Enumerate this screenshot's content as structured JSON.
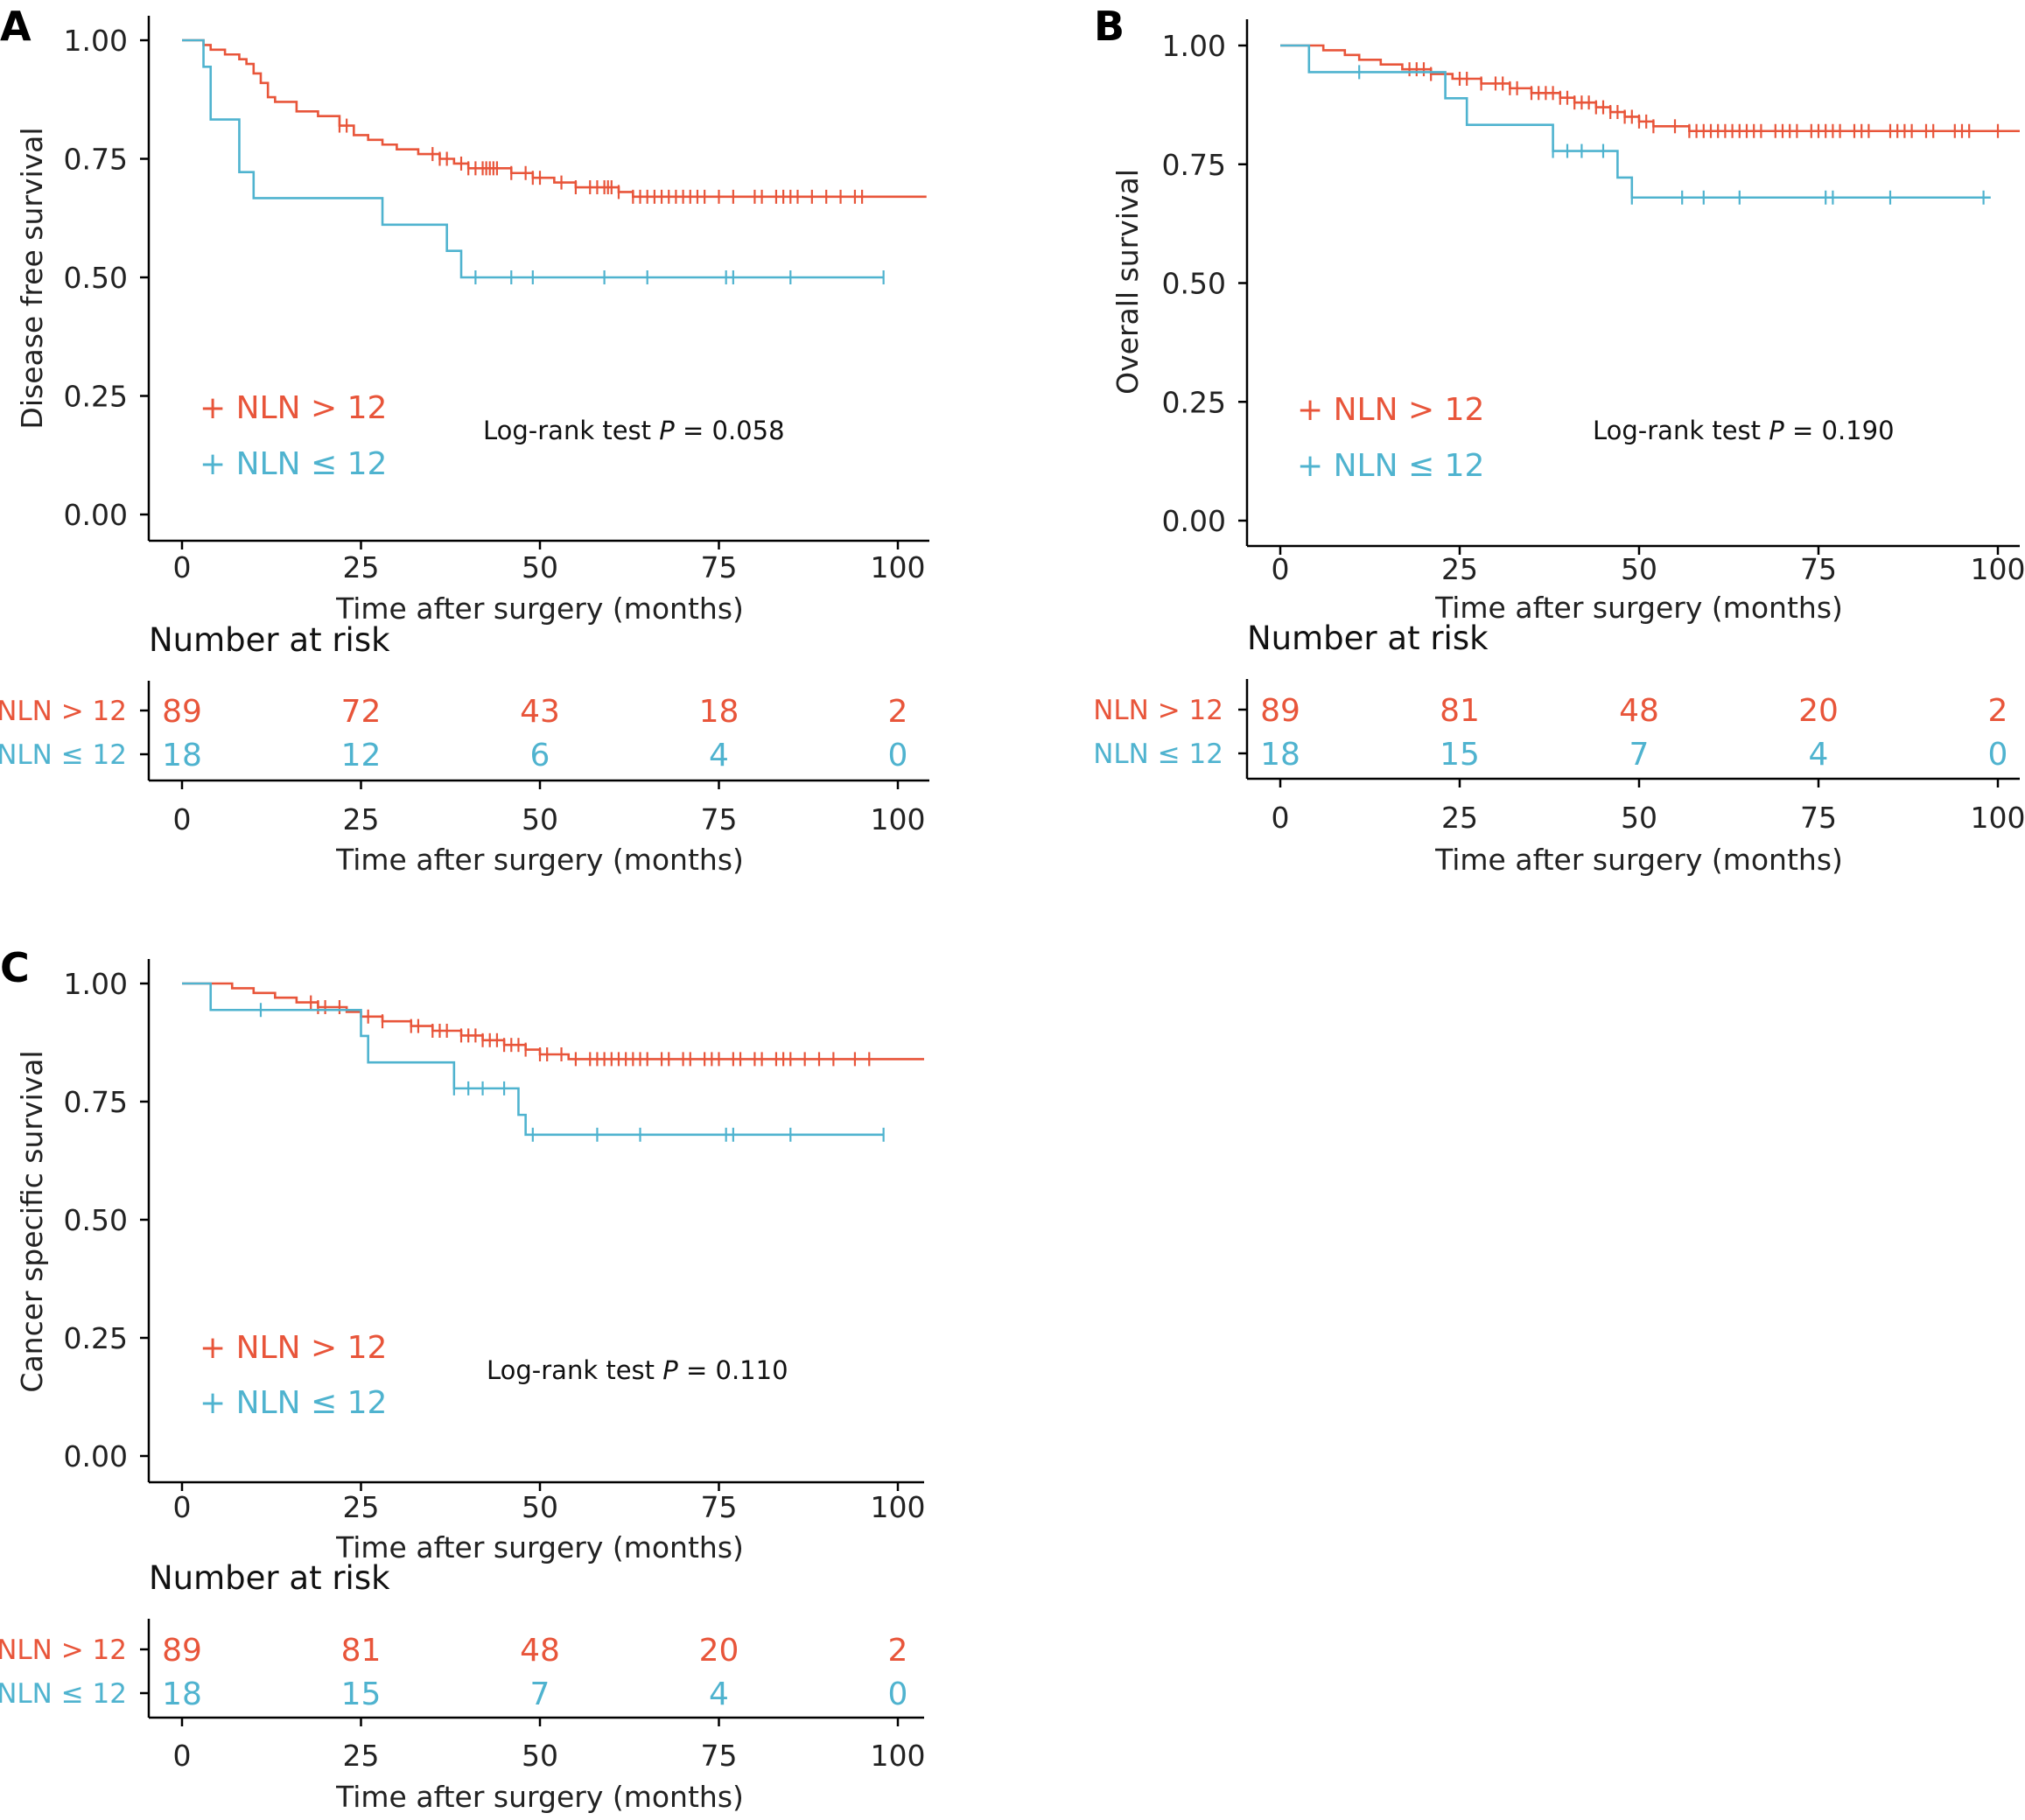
{
  "colors": {
    "group1": "#e8553a",
    "group2": "#4fb3cf"
  },
  "groups": [
    {
      "label": "NLN > 12",
      "legend": "+ NLN > 12",
      "color": "#e8553a"
    },
    {
      "label": "NLN ≤ 12",
      "legend": "+ NLN ≤ 12",
      "color": "#4fb3cf"
    }
  ],
  "risk_table_title": "Number at risk",
  "chart_data": [
    {
      "type": "line",
      "panel": "A",
      "ylabel": "Disease free survival",
      "xlabel": "Time after surgery (months)",
      "xlim": [
        0,
        100
      ],
      "ylim": [
        0,
        1
      ],
      "xticks": [
        0,
        25,
        50,
        75,
        100
      ],
      "xtick_labels": [
        "0",
        "25",
        "50",
        "75",
        "100"
      ],
      "yticks": [
        0,
        0.25,
        0.5,
        0.75,
        1
      ],
      "ytick_labels": [
        "0.00",
        "0.25",
        "0.50",
        "0.75",
        "1.00"
      ],
      "pvalue_label": "Log-rank test",
      "pvalue_p": "P",
      "pvalue_value": "= 0.058",
      "series": [
        {
          "name": "NLN > 12",
          "x": [
            0,
            3,
            4,
            6,
            8,
            9,
            10,
            11,
            12,
            13,
            16,
            19,
            22,
            24,
            26,
            28,
            30,
            33,
            36,
            38,
            40,
            43,
            46,
            49,
            52,
            55,
            58,
            61,
            62,
            63,
            65,
            67,
            104
          ],
          "y": [
            1.0,
            0.99,
            0.98,
            0.97,
            0.96,
            0.95,
            0.93,
            0.91,
            0.88,
            0.87,
            0.85,
            0.84,
            0.82,
            0.8,
            0.79,
            0.78,
            0.77,
            0.76,
            0.75,
            0.74,
            0.73,
            0.73,
            0.72,
            0.71,
            0.7,
            0.69,
            0.69,
            0.68,
            0.68,
            0.67,
            0.67,
            0.67,
            0.67
          ],
          "censor_x": [
            22,
            23,
            35,
            36,
            37,
            39,
            40,
            41,
            42,
            42.5,
            43,
            43.5,
            44,
            46,
            48,
            49,
            50,
            53,
            55,
            57,
            58,
            59,
            59.5,
            60,
            61,
            63,
            64,
            65,
            66,
            67,
            68,
            69,
            70,
            71,
            72,
            73,
            75,
            77,
            80,
            81,
            83,
            84,
            85,
            86,
            88,
            90,
            92,
            94,
            95
          ]
        },
        {
          "name": "NLN ≤ 12",
          "x": [
            0,
            3,
            4,
            8,
            10,
            28,
            37,
            39,
            98
          ],
          "y": [
            1.0,
            0.944,
            0.833,
            0.722,
            0.667,
            0.611,
            0.556,
            0.5,
            0.5
          ],
          "censor_x": [
            41,
            46,
            49,
            59,
            65,
            76,
            77,
            85,
            98
          ]
        }
      ],
      "risk_times": [
        0,
        25,
        50,
        75,
        100
      ],
      "risk_counts": [
        [
          89,
          72,
          43,
          18,
          2
        ],
        [
          18,
          12,
          6,
          4,
          0
        ]
      ]
    },
    {
      "type": "line",
      "panel": "B",
      "ylabel": "Overall survival",
      "xlabel": "Time after surgery (months)",
      "xlim": [
        0,
        100
      ],
      "ylim": [
        0,
        1
      ],
      "xticks": [
        0,
        25,
        50,
        75,
        100
      ],
      "xtick_labels": [
        "0",
        "25",
        "50",
        "75",
        "100"
      ],
      "yticks": [
        0,
        0.25,
        0.5,
        0.75,
        1
      ],
      "ytick_labels": [
        "0.00",
        "0.25",
        "0.50",
        "0.75",
        "1.00"
      ],
      "pvalue_label": "Log-rank test",
      "pvalue_p": "P",
      "pvalue_value": "= 0.190",
      "series": [
        {
          "name": "NLN > 12",
          "x": [
            0,
            6,
            9,
            11,
            14,
            17,
            21,
            24,
            28,
            32,
            35,
            39,
            41,
            44,
            46,
            48,
            50,
            52,
            55,
            57,
            104
          ],
          "y": [
            1.0,
            0.99,
            0.98,
            0.97,
            0.96,
            0.95,
            0.94,
            0.93,
            0.92,
            0.91,
            0.9,
            0.89,
            0.88,
            0.87,
            0.86,
            0.85,
            0.84,
            0.83,
            0.83,
            0.82,
            0.82
          ],
          "censor_x": [
            18,
            19,
            20,
            21,
            25,
            26,
            28,
            30,
            31,
            32,
            33,
            35,
            36,
            37,
            38,
            39,
            40,
            41,
            42,
            43,
            44,
            45,
            46,
            47,
            48,
            49,
            50,
            51,
            52,
            55,
            57,
            58,
            59,
            60,
            61,
            62,
            63,
            64,
            65,
            66,
            67,
            69,
            70,
            71,
            72,
            74,
            75,
            76,
            77,
            78,
            80,
            81,
            82,
            85,
            86,
            87,
            88,
            90,
            91,
            94,
            95,
            96,
            100
          ]
        },
        {
          "name": "NLN ≤ 12",
          "x": [
            0,
            4,
            23,
            26,
            38,
            47,
            49,
            99
          ],
          "y": [
            1.0,
            0.944,
            0.889,
            0.833,
            0.778,
            0.722,
            0.68,
            0.68
          ],
          "censor_x": [
            11,
            38,
            40,
            42,
            45,
            49,
            56,
            59,
            64,
            76,
            77,
            85,
            98
          ]
        }
      ],
      "risk_times": [
        0,
        25,
        50,
        75,
        100
      ],
      "risk_counts": [
        [
          89,
          81,
          48,
          20,
          2
        ],
        [
          18,
          15,
          7,
          4,
          0
        ]
      ]
    },
    {
      "type": "line",
      "panel": "C",
      "ylabel": "Cancer specific survival",
      "xlabel": "Time after surgery (months)",
      "xlim": [
        0,
        100
      ],
      "ylim": [
        0,
        1
      ],
      "xticks": [
        0,
        25,
        50,
        75,
        100
      ],
      "xtick_labels": [
        "0",
        "25",
        "50",
        "75",
        "100"
      ],
      "yticks": [
        0,
        0.25,
        0.5,
        0.75,
        1
      ],
      "ytick_labels": [
        "0.00",
        "0.25",
        "0.50",
        "0.75",
        "1.00"
      ],
      "pvalue_label": "Log-rank test",
      "pvalue_p": "P",
      "pvalue_value": "= 0.110",
      "series": [
        {
          "name": "NLN > 12",
          "x": [
            0,
            7,
            10,
            13,
            16,
            19,
            23,
            25,
            28,
            32,
            35,
            39,
            42,
            45,
            48,
            50,
            52,
            54,
            56,
            104
          ],
          "y": [
            1.0,
            0.99,
            0.98,
            0.97,
            0.96,
            0.95,
            0.94,
            0.93,
            0.92,
            0.91,
            0.9,
            0.89,
            0.88,
            0.87,
            0.86,
            0.85,
            0.85,
            0.84,
            0.84,
            0.84
          ],
          "censor_x": [
            18,
            19,
            20,
            22,
            26,
            28,
            32,
            33,
            35,
            36,
            37,
            39,
            40,
            41,
            42,
            43,
            44,
            45,
            46,
            47,
            48,
            50,
            51,
            53,
            55,
            57,
            58,
            59,
            60,
            61,
            62,
            63,
            64,
            65,
            67,
            68,
            70,
            71,
            73,
            74,
            75,
            77,
            78,
            80,
            81,
            83,
            84,
            85,
            87,
            89,
            91,
            94,
            96
          ]
        },
        {
          "name": "NLN ≤ 12",
          "x": [
            0,
            4,
            25,
            26,
            38,
            47,
            48,
            98
          ],
          "y": [
            1.0,
            0.944,
            0.889,
            0.833,
            0.778,
            0.722,
            0.68,
            0.68
          ],
          "censor_x": [
            11,
            38,
            40,
            42,
            45,
            49,
            58,
            64,
            76,
            77,
            85,
            98
          ]
        }
      ],
      "risk_times": [
        0,
        25,
        50,
        75,
        100
      ],
      "risk_counts": [
        [
          89,
          81,
          48,
          20,
          2
        ],
        [
          18,
          15,
          7,
          4,
          0
        ]
      ]
    }
  ]
}
